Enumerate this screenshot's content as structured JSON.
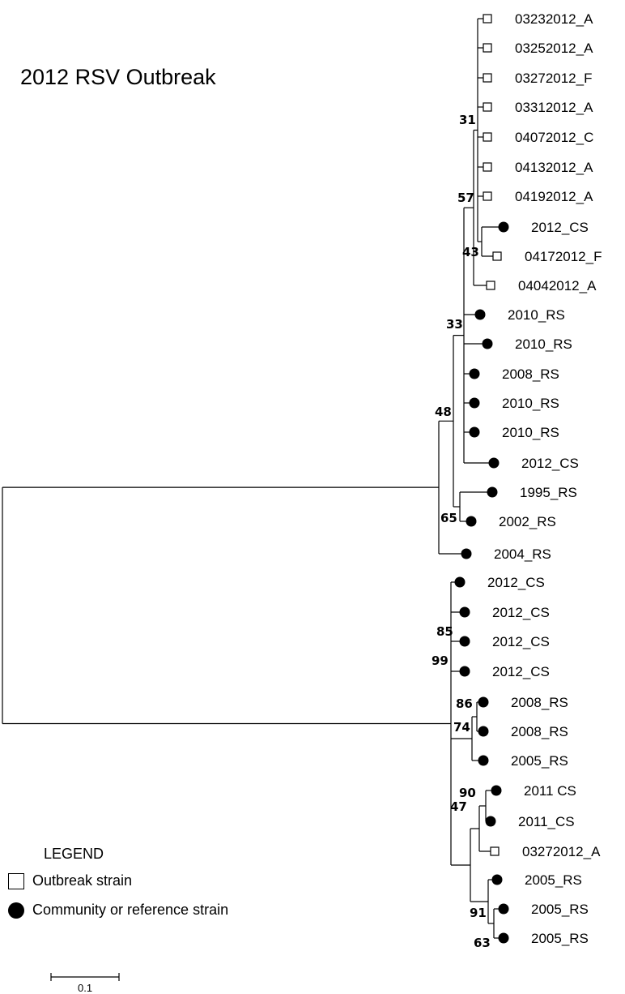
{
  "title": "2012 RSV Outbreak",
  "legend": {
    "title": "LEGEND",
    "outbreak_label": "Outbreak strain",
    "community_label": "Community or reference strain"
  },
  "scale_bar_label": "0.1",
  "leaves": [
    {
      "label": "03232012_A",
      "type": "outbreak"
    },
    {
      "label": "03252012_A",
      "type": "outbreak"
    },
    {
      "label": "03272012_F",
      "type": "outbreak"
    },
    {
      "label": "03312012_A",
      "type": "outbreak"
    },
    {
      "label": "04072012_C",
      "type": "outbreak"
    },
    {
      "label": "04132012_A",
      "type": "outbreak"
    },
    {
      "label": "04192012_A",
      "type": "outbreak"
    },
    {
      "label": "2012_CS",
      "type": "community"
    },
    {
      "label": "04172012_F",
      "type": "outbreak"
    },
    {
      "label": "04042012_A",
      "type": "outbreak"
    },
    {
      "label": "2010_RS",
      "type": "community"
    },
    {
      "label": "2010_RS",
      "type": "community"
    },
    {
      "label": "2008_RS",
      "type": "community"
    },
    {
      "label": "2010_RS",
      "type": "community"
    },
    {
      "label": "2010_RS",
      "type": "community"
    },
    {
      "label": "2012_CS",
      "type": "community"
    },
    {
      "label": "1995_RS",
      "type": "community"
    },
    {
      "label": "2002_RS",
      "type": "community"
    },
    {
      "label": "2004_RS",
      "type": "community"
    },
    {
      "label": "2012_CS",
      "type": "community"
    },
    {
      "label": "2012_CS",
      "type": "community"
    },
    {
      "label": "2012_CS",
      "type": "community"
    },
    {
      "label": "2012_CS",
      "type": "community"
    },
    {
      "label": "2008_RS",
      "type": "community"
    },
    {
      "label": "2008_RS",
      "type": "community"
    },
    {
      "label": "2005_RS",
      "type": "community"
    },
    {
      "label": "2011 CS",
      "type": "community"
    },
    {
      "label": "2011_CS",
      "type": "community"
    },
    {
      "label": "03272012_A",
      "type": "outbreak"
    },
    {
      "label": "2005_RS",
      "type": "community"
    },
    {
      "label": "2005_RS",
      "type": "community"
    },
    {
      "label": "2005_RS",
      "type": "community"
    }
  ],
  "bootstrap_values": [
    "31",
    "57",
    "43",
    "33",
    "48",
    "65",
    "85",
    "99",
    "86",
    "74",
    "90",
    "47",
    "91",
    "63"
  ]
}
